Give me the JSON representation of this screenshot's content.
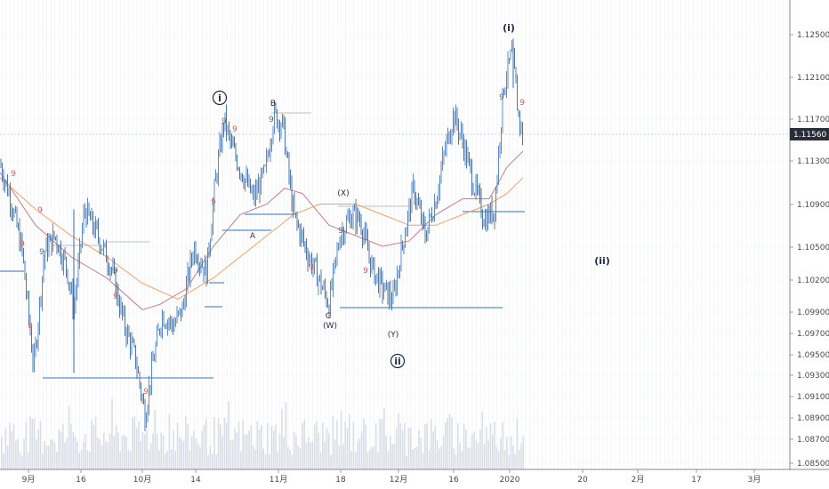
{
  "chart_data": {
    "type": "line",
    "pair_last_price": "1.11560",
    "y_ticks": [
      "1.12500",
      "1.12100",
      "1.11700",
      "1.11300",
      "1.10900",
      "1.10500",
      "1.10200",
      "1.09900",
      "1.09700",
      "1.09500",
      "1.09300",
      "1.09100",
      "1.08900",
      "1.08700",
      "1.08500"
    ],
    "x_ticks": [
      "9月",
      "16",
      "10月",
      "14",
      "11月",
      "18",
      "12月",
      "16",
      "2020",
      "20",
      "2月",
      "17",
      "3月"
    ],
    "series": [
      {
        "values": [
          [
            0,
            1.1128
          ],
          [
            12,
            1.1095
          ],
          [
            25,
            1.1045
          ],
          [
            38,
            1.0935
          ],
          [
            50,
            1.1045
          ],
          [
            62,
            1.106
          ],
          [
            75,
            1.103
          ],
          [
            83,
            1.099
          ],
          [
            95,
            1.1085
          ],
          [
            110,
            1.106
          ],
          [
            125,
            1.103
          ],
          [
            140,
            1.0975
          ],
          [
            152,
            1.0945
          ],
          [
            163,
            1.089
          ],
          [
            172,
            1.094
          ],
          [
            182,
            1.0985
          ],
          [
            195,
            1.0975
          ],
          [
            205,
            1.099
          ],
          [
            218,
            1.105
          ],
          [
            232,
            1.1025
          ],
          [
            242,
            1.111
          ],
          [
            252,
            1.117
          ],
          [
            260,
            1.1145
          ],
          [
            272,
            1.112
          ],
          [
            285,
            1.1095
          ],
          [
            298,
            1.112
          ],
          [
            308,
            1.1175
          ],
          [
            318,
            1.1165
          ],
          [
            330,
            1.108
          ],
          [
            345,
            1.1045
          ],
          [
            358,
            1.102
          ],
          [
            370,
            1.0995
          ],
          [
            382,
            1.106
          ],
          [
            395,
            1.108
          ],
          [
            405,
            1.1075
          ],
          [
            418,
            1.103
          ],
          [
            430,
            1.101
          ],
          [
            442,
            1.1
          ],
          [
            452,
            1.105
          ],
          [
            465,
            1.1105
          ],
          [
            478,
            1.106
          ],
          [
            490,
            1.1095
          ],
          [
            500,
            1.114
          ],
          [
            510,
            1.1175
          ],
          [
            520,
            1.115
          ],
          [
            532,
            1.111
          ],
          [
            545,
            1.1075
          ],
          [
            556,
            1.1085
          ],
          [
            566,
            1.12
          ],
          [
            576,
            1.1235
          ],
          [
            582,
            1.118
          ],
          [
            588,
            1.115
          ]
        ]
      },
      {
        "values": [
          [
            0,
            1.112
          ],
          [
            40,
            1.107
          ],
          [
            80,
            1.104
          ],
          [
            120,
            1.102
          ],
          [
            160,
            1.099
          ],
          [
            180,
            1.0995
          ],
          [
            210,
            1.101
          ],
          [
            240,
            1.105
          ],
          [
            270,
            1.108
          ],
          [
            300,
            1.109
          ],
          [
            320,
            1.1105
          ],
          [
            340,
            1.11
          ],
          [
            370,
            1.107
          ],
          [
            400,
            1.106
          ],
          [
            430,
            1.105
          ],
          [
            460,
            1.1055
          ],
          [
            490,
            1.108
          ],
          [
            520,
            1.1095
          ],
          [
            550,
            1.1095
          ],
          [
            570,
            1.1125
          ],
          [
            588,
            1.114
          ]
        ]
      },
      {
        "values": [
          [
            0,
            1.1115
          ],
          [
            40,
            1.1085
          ],
          [
            80,
            1.106
          ],
          [
            120,
            1.104
          ],
          [
            160,
            1.1015
          ],
          [
            200,
            1.1
          ],
          [
            240,
            1.102
          ],
          [
            270,
            1.104
          ],
          [
            300,
            1.106
          ],
          [
            330,
            1.108
          ],
          [
            360,
            1.109
          ],
          [
            400,
            1.109
          ],
          [
            430,
            1.108
          ],
          [
            460,
            1.107
          ],
          [
            490,
            1.107
          ],
          [
            520,
            1.108
          ],
          [
            550,
            1.109
          ],
          [
            570,
            1.11
          ],
          [
            588,
            1.1115
          ]
        ]
      }
    ],
    "annotations": [
      "ⓘ",
      "B",
      "A",
      "C",
      "(W)",
      "(X)",
      "(Y)",
      "ⓘⓘ",
      "(i)",
      "(ii)",
      "9"
    ]
  }
}
